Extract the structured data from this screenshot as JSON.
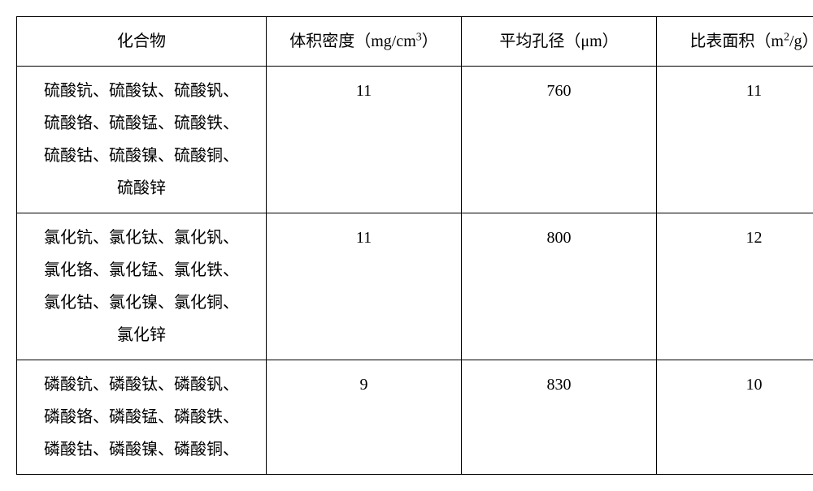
{
  "table": {
    "headers": {
      "compound": "化合物",
      "density": "体积密度（mg/cm",
      "density_sup": "3",
      "density_close": "）",
      "pore": "平均孔径（μm）",
      "surface": "比表面积（m",
      "surface_sup": "2",
      "surface_close": "/g）"
    },
    "rows": [
      {
        "compound_lines": [
          "硫酸钪、硫酸钛、硫酸钒、",
          "硫酸铬、硫酸锰、硫酸铁、",
          "硫酸钴、硫酸镍、硫酸铜、",
          "硫酸锌"
        ],
        "density": "11",
        "pore": "760",
        "surface": "11"
      },
      {
        "compound_lines": [
          "氯化钪、氯化钛、氯化钒、",
          "氯化铬、氯化锰、氯化铁、",
          "氯化钴、氯化镍、氯化铜、",
          "氯化锌"
        ],
        "density": "11",
        "pore": "800",
        "surface": "12"
      },
      {
        "compound_lines": [
          "磷酸钪、磷酸钛、磷酸钒、",
          "磷酸铬、磷酸锰、磷酸铁、",
          "磷酸钴、磷酸镍、磷酸铜、"
        ],
        "density": "9",
        "pore": "830",
        "surface": "10"
      }
    ],
    "colors": {
      "border": "#000000",
      "background": "#ffffff",
      "text": "#000000"
    },
    "font_size_pt": 15,
    "line_height": 2.0
  }
}
